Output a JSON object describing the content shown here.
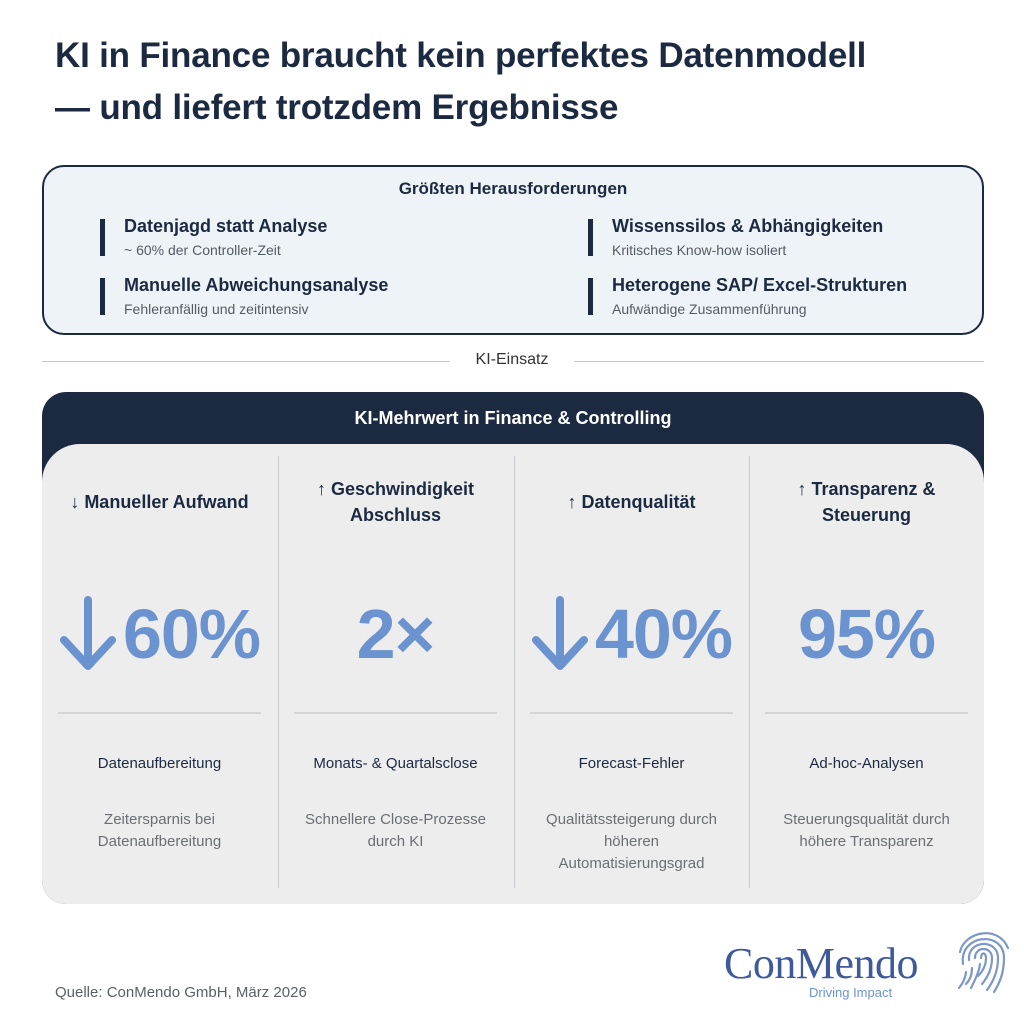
{
  "title": {
    "line1": "KI in Finance braucht kein perfektes Datenmodell",
    "line2": "— und liefert trotzdem Ergebnisse"
  },
  "challenges": {
    "heading": "Größten Herausforderungen",
    "items": [
      {
        "title": "Datenjagd statt Analyse",
        "subtitle": "~ 60% der Controller-Zeit"
      },
      {
        "title": "Wissenssilos & Abhängigkeiten",
        "subtitle": "Kritisches Know-how isoliert"
      },
      {
        "title": "Manuelle Abweichungsanalyse",
        "subtitle": "Fehleranfällig und zeitintensiv"
      },
      {
        "title": "Heterogene SAP/ Excel-Strukturen",
        "subtitle": "Aufwändige Zusammenführung"
      }
    ]
  },
  "divider": {
    "label": "KI-Einsatz"
  },
  "mehrwert": {
    "heading": "KI-Mehrwert in Finance & Controlling",
    "columns": [
      {
        "heading": "↓ Manueller Aufwand",
        "metric": "60%",
        "metric_arrow": "down-arrow-icon",
        "label": "Datenaufbereitung",
        "description": "Zeitersparnis bei Datenaufbereitung"
      },
      {
        "heading": "↑ Geschwindigkeit Abschluss",
        "metric": "2×",
        "metric_arrow": "",
        "label": "Monats- & Quartalsclose",
        "description": "Schnellere Close-Prozesse durch KI"
      },
      {
        "heading": "↑ Datenqualität",
        "metric": "40%",
        "metric_arrow": "down-arrow-icon",
        "label": "Forecast-Fehler",
        "description": "Qualitätssteigerung durch höheren Automatisierungsgrad"
      },
      {
        "heading": "↑ Transparenz & Steuerung",
        "metric": "95%",
        "metric_arrow": "",
        "label": "Ad-hoc-Analysen",
        "description": "Steuerungsqualität durch höhere Transparenz"
      }
    ]
  },
  "source": "Quelle: ConMendo GmbH, März 2026",
  "logo": {
    "name": "ConMendo",
    "tagline": "Driving Impact"
  },
  "colors": {
    "navy": "#1b2a41",
    "accent_blue": "#6b93cf",
    "panel_grey": "#ededee",
    "box_bg": "#eef3f8"
  }
}
